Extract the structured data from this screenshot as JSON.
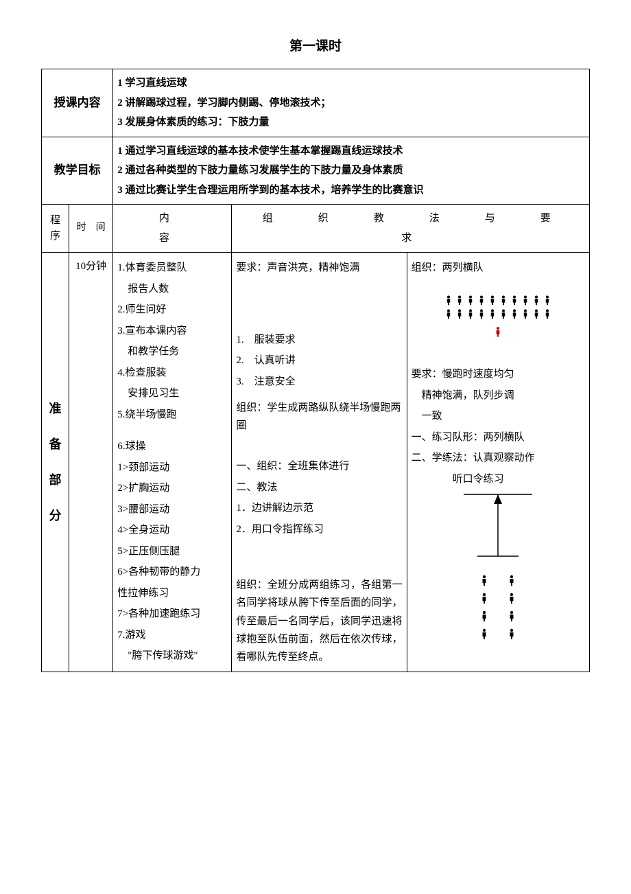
{
  "title": "第一课时",
  "rows": {
    "lesson_content": {
      "label": "授课内容",
      "items": [
        "1 学习直线运球",
        "2 讲解踢球过程，学习脚内侧踢、停地滚技术；",
        "3 发展身体素质的练习：下肢力量"
      ]
    },
    "objectives": {
      "label": "教学目标",
      "items": [
        "1 通过学习直线运球的基本技术使学生基本掌握踢直线运球技术",
        "2 通过各种类型的下肢力量练习发展学生的下肢力量及身体素质",
        "3 通过比赛让学生合理运用所学到的基本技术，培养学生的比赛意识"
      ]
    }
  },
  "headers": {
    "seq": "程序",
    "time": "时　间",
    "content": "内　　　容",
    "method": "组　　织　　教　　法　　与　　要　　求"
  },
  "prep": {
    "phase_label": [
      "准",
      "备",
      "部",
      "分"
    ],
    "time": "10分钟",
    "content": [
      "1.体育委员整队",
      "　报告人数",
      "2.师生问好",
      "3.宣布本课内容",
      "　和教学任务",
      "4.检查服装",
      "　安排见习生",
      "5.绕半场慢跑",
      "",
      "6.球操",
      "1>颈部运动",
      "2>扩胸运动",
      "3>腰部运动",
      "4>全身运动",
      "5>正压侧压腿",
      "6>各种韧带的静力",
      "性拉伸练习",
      "7>各种加速跑练习",
      "7.游戏",
      "　\"胯下传球游戏\""
    ],
    "method_left": {
      "req1": "要求：声音洪亮，精神饱满",
      "dress": [
        "1.　服装要求",
        "2.　认真听讲",
        "3.　注意安全"
      ],
      "org_jog": "组织：学生成两路纵队绕半场慢跑两圈",
      "org_all": [
        "一、组织：全班集体进行",
        "二、教法",
        "1．边讲解边示范",
        "2．用口令指挥练习"
      ],
      "org_game": "组织：全班分成两组练习，各组第一名同学将球从胯下传至后面的同学，传至最后一名同学后，该同学迅速将球抱至队伍前面，然后在依次传球，看哪队先传至终点。"
    },
    "method_right": {
      "org_label": "组织：两列横队",
      "jog_req": [
        "要求：慢跑时速度均匀",
        "　精神饱满，队列步调",
        "　一致"
      ],
      "formation": [
        "一、练习队形：两列横队",
        "二、学练法：认真观察动作",
        "　　　　听口令练习"
      ]
    },
    "icons": {
      "person_color": "#000000",
      "teacher_color": "#c00000",
      "row_count": 2,
      "per_row": 10,
      "arrow_line_color": "#000000",
      "pair_rows": 4
    }
  }
}
